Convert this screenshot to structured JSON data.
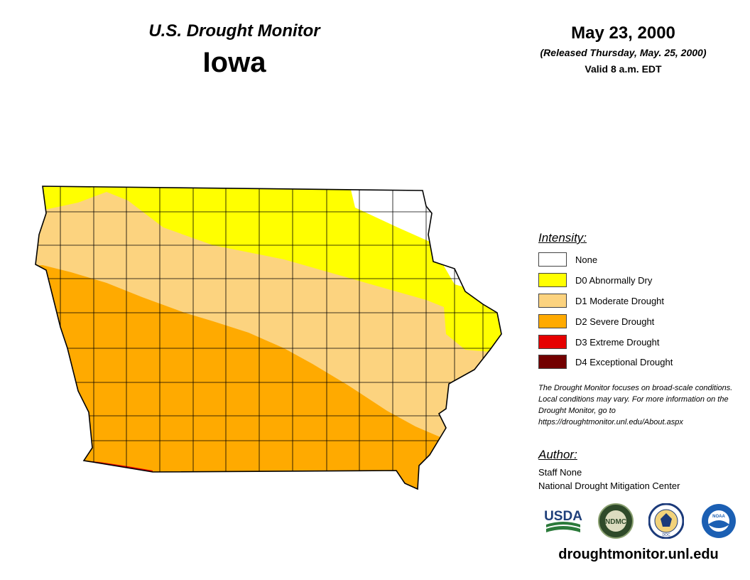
{
  "header": {
    "subtitle": "U.S. Drought Monitor",
    "state": "Iowa",
    "date": "May 23, 2000",
    "released": "(Released Thursday, May. 25, 2000)",
    "valid": "Valid 8 a.m. EDT"
  },
  "legend": {
    "title": "Intensity:",
    "items": [
      {
        "label": "None",
        "color": "#ffffff"
      },
      {
        "label": "D0 Abnormally Dry",
        "color": "#ffff00"
      },
      {
        "label": "D1 Moderate Drought",
        "color": "#fcd37f"
      },
      {
        "label": "D2 Severe Drought",
        "color": "#ffaa00"
      },
      {
        "label": "D3 Extreme Drought",
        "color": "#e60000"
      },
      {
        "label": "D4 Exceptional Drought",
        "color": "#730000"
      }
    ]
  },
  "disclaimer": "The Drought Monitor focuses on broad-scale conditions. Local conditions may vary. For more information on the Drought Monitor, go to https://droughtmonitor.unl.edu/About.aspx",
  "author": {
    "title": "Author:",
    "name": "Staff None",
    "organization": "National Drought Mitigation Center"
  },
  "logos": {
    "usda": "USDA",
    "ndmc": "NDMC",
    "commerce": "DOC",
    "noaa": "NOAA"
  },
  "website": "droughtmonitor.unl.edu"
}
